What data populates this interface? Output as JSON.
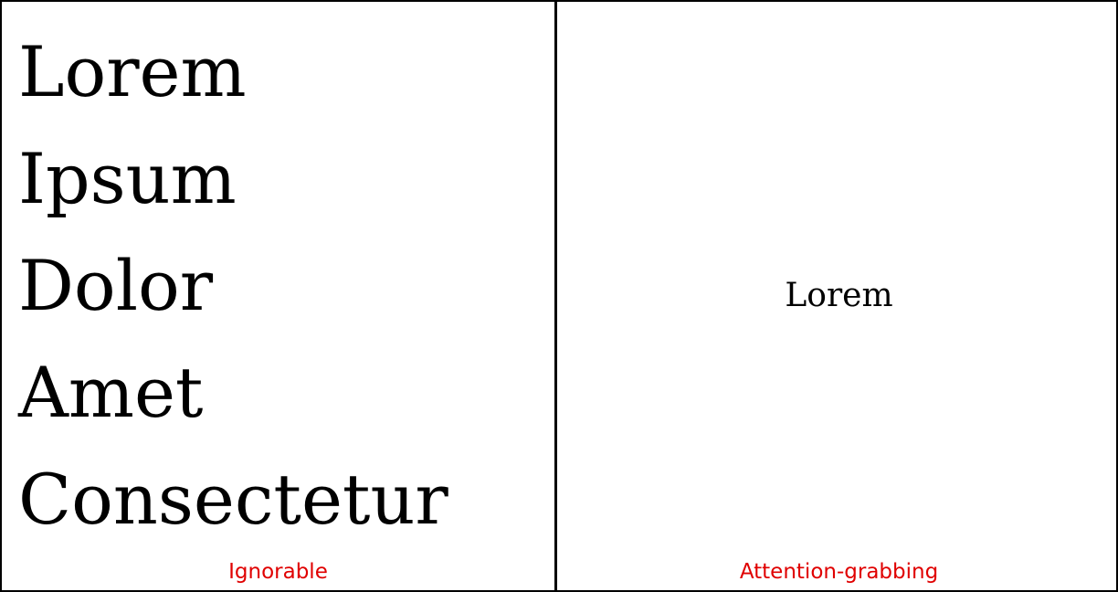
{
  "left_panel": {
    "words": [
      "Lorem",
      "Ipsum",
      "Dolor",
      "Amet",
      "Consectetur"
    ],
    "caption": "Ignorable"
  },
  "right_panel": {
    "word": "Lorem",
    "caption": "Attention-grabbing"
  },
  "colors": {
    "caption": "#e00000",
    "text": "#000000",
    "border": "#000000",
    "background": "#ffffff"
  }
}
